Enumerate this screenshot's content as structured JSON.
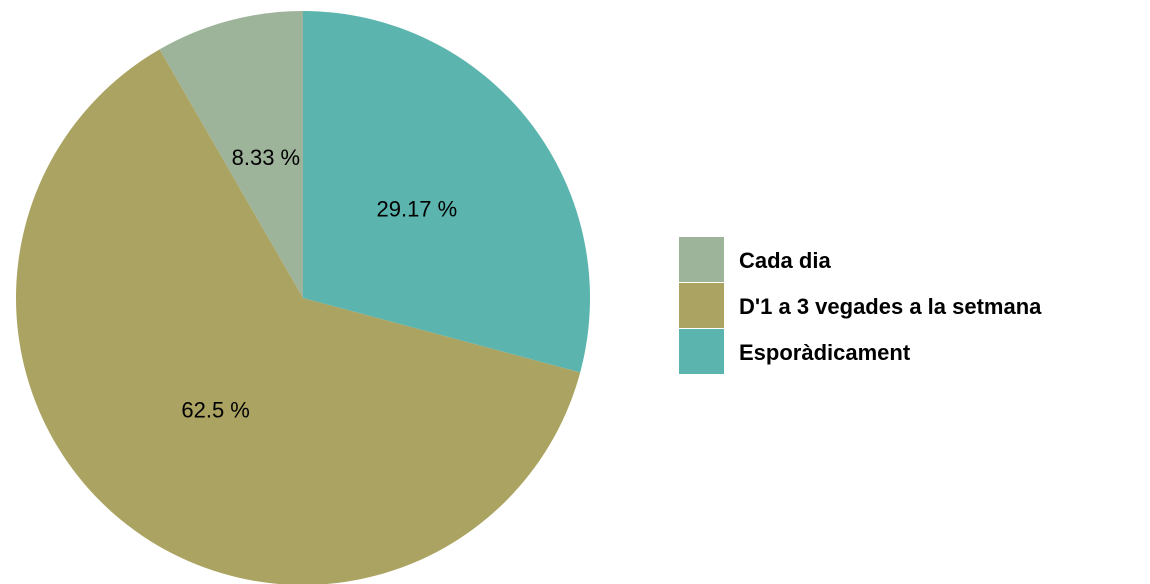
{
  "chart_data": {
    "type": "pie",
    "categories": [
      "Cada dia",
      "D'1 a 3 vegades a la setmana",
      "Esporàdicament"
    ],
    "values": [
      8.33,
      62.5,
      29.17
    ],
    "value_labels": [
      "8.33 %",
      "62.5 %",
      "29.17 %"
    ],
    "colors": [
      "#9db39a",
      "#aba361",
      "#5bb4ae"
    ],
    "legend": "right"
  }
}
